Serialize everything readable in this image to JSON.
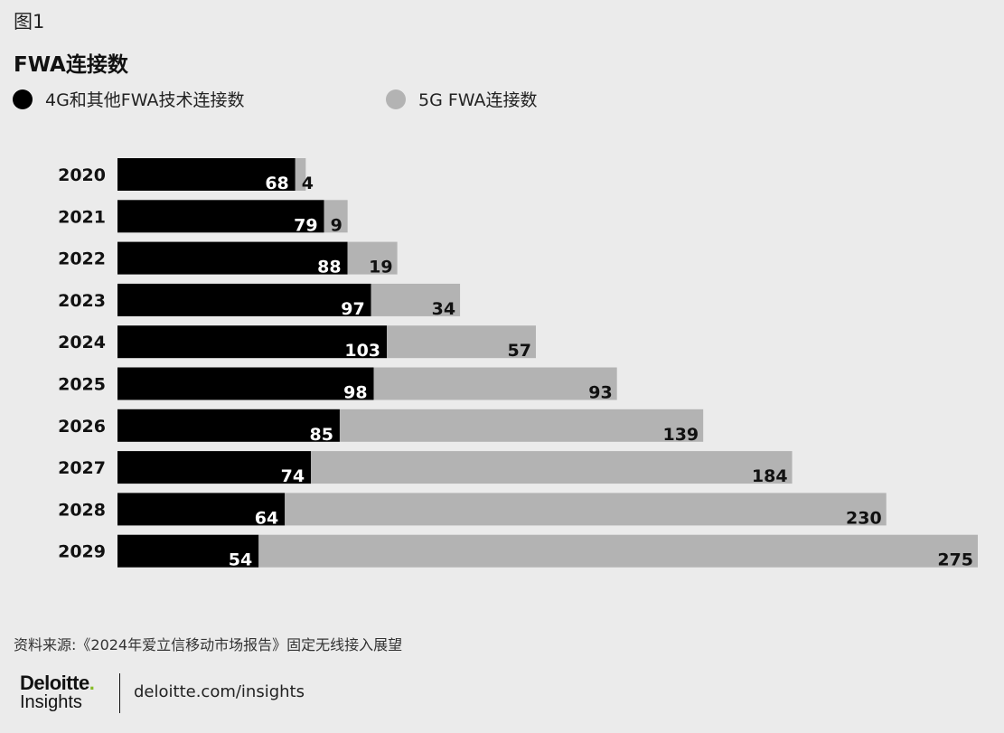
{
  "figure_label": "图1",
  "source": "资料来源:《2024年爱立信移动市场报告》固定无线接入展望",
  "footer": {
    "brand_main": "Deloitte",
    "brand_dot": ".",
    "brand_sub": "Insights",
    "link": "deloitte.com/insights"
  },
  "colors": {
    "series_4g": "#000000",
    "series_5g": "#b3b3b3",
    "background": "#ebebeb",
    "brand_accent": "#86bc25"
  },
  "chart_data": {
    "type": "bar",
    "orientation": "horizontal",
    "stacked": true,
    "title": "FWA连接数",
    "categories": [
      "2020",
      "2021",
      "2022",
      "2023",
      "2024",
      "2025",
      "2026",
      "2027",
      "2028",
      "2029"
    ],
    "series": [
      {
        "name": "4G和其他FWA技术连接数",
        "color": "#000000",
        "values": [
          68,
          79,
          88,
          97,
          103,
          98,
          85,
          74,
          64,
          54
        ]
      },
      {
        "name": "5G FWA连接数",
        "color": "#b3b3b3",
        "values": [
          4,
          9,
          19,
          34,
          57,
          93,
          139,
          184,
          230,
          275
        ]
      }
    ],
    "xlim": [
      0,
      329
    ],
    "grid": false,
    "legend_position": "top-left",
    "data_labels": true
  }
}
